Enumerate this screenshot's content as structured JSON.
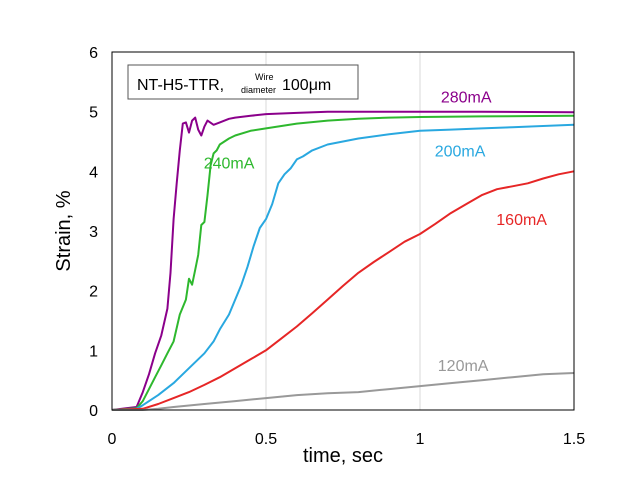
{
  "chart_data": {
    "type": "line",
    "title": "",
    "xlabel": "time, sec",
    "ylabel": "Strain, %",
    "xlim": [
      0,
      1.5
    ],
    "ylim": [
      0,
      6
    ],
    "xticks": [
      "0",
      "0.5",
      "1",
      "1.5"
    ],
    "yticks": [
      "0",
      "1",
      "2",
      "3",
      "4",
      "5",
      "6"
    ],
    "grid": "vertical",
    "annotation": {
      "prefix": "NT-H5-TTR, ",
      "sup": "Wire",
      "sub": "diameter",
      "value": "100",
      "unit": "μm"
    },
    "series": [
      {
        "name": "280mA",
        "color": "#8b008b",
        "x": [
          0,
          0.08,
          0.1,
          0.12,
          0.14,
          0.16,
          0.18,
          0.19,
          0.2,
          0.21,
          0.22,
          0.23,
          0.24,
          0.25,
          0.26,
          0.27,
          0.28,
          0.29,
          0.3,
          0.31,
          0.33,
          0.35,
          0.38,
          0.4,
          0.45,
          0.5,
          0.6,
          0.7,
          0.8,
          1.0,
          1.2,
          1.5
        ],
        "y": [
          0,
          0.05,
          0.3,
          0.6,
          0.95,
          1.25,
          1.7,
          2.3,
          3.2,
          3.8,
          4.35,
          4.8,
          4.82,
          4.65,
          4.85,
          4.9,
          4.7,
          4.6,
          4.75,
          4.85,
          4.78,
          4.82,
          4.88,
          4.9,
          4.93,
          4.96,
          4.98,
          5.0,
          5.0,
          5.0,
          5.0,
          4.99
        ]
      },
      {
        "name": "240mA",
        "color": "#2eb82e",
        "x": [
          0,
          0.08,
          0.1,
          0.12,
          0.14,
          0.16,
          0.18,
          0.2,
          0.22,
          0.24,
          0.25,
          0.26,
          0.27,
          0.28,
          0.29,
          0.3,
          0.31,
          0.32,
          0.33,
          0.34,
          0.35,
          0.38,
          0.4,
          0.45,
          0.5,
          0.6,
          0.7,
          0.8,
          0.9,
          1.0,
          1.2,
          1.5
        ],
        "y": [
          0,
          0.03,
          0.15,
          0.35,
          0.55,
          0.75,
          0.95,
          1.15,
          1.6,
          1.85,
          2.2,
          2.1,
          2.35,
          2.6,
          3.1,
          3.15,
          3.6,
          4.1,
          4.3,
          4.35,
          4.45,
          4.55,
          4.6,
          4.68,
          4.72,
          4.8,
          4.85,
          4.88,
          4.9,
          4.91,
          4.92,
          4.93
        ]
      },
      {
        "name": "200mA",
        "color": "#29a8e0",
        "x": [
          0,
          0.08,
          0.1,
          0.15,
          0.2,
          0.25,
          0.3,
          0.33,
          0.35,
          0.38,
          0.4,
          0.42,
          0.44,
          0.46,
          0.48,
          0.5,
          0.52,
          0.54,
          0.56,
          0.58,
          0.6,
          0.62,
          0.65,
          0.7,
          0.75,
          0.8,
          0.9,
          1.0,
          1.1,
          1.2,
          1.3,
          1.5
        ],
        "y": [
          0,
          0.02,
          0.08,
          0.25,
          0.45,
          0.7,
          0.95,
          1.15,
          1.35,
          1.6,
          1.85,
          2.1,
          2.4,
          2.75,
          3.05,
          3.2,
          3.45,
          3.8,
          3.95,
          4.05,
          4.2,
          4.25,
          4.35,
          4.45,
          4.5,
          4.55,
          4.62,
          4.68,
          4.7,
          4.72,
          4.74,
          4.78
        ]
      },
      {
        "name": "160mA",
        "color": "#e62626",
        "x": [
          0,
          0.1,
          0.15,
          0.2,
          0.25,
          0.3,
          0.35,
          0.4,
          0.45,
          0.5,
          0.55,
          0.6,
          0.65,
          0.7,
          0.75,
          0.8,
          0.85,
          0.9,
          0.95,
          1.0,
          1.05,
          1.1,
          1.15,
          1.2,
          1.25,
          1.3,
          1.35,
          1.4,
          1.45,
          1.5
        ],
        "y": [
          0,
          0.02,
          0.1,
          0.2,
          0.3,
          0.42,
          0.55,
          0.7,
          0.85,
          1.0,
          1.2,
          1.4,
          1.62,
          1.85,
          2.08,
          2.3,
          2.48,
          2.65,
          2.82,
          2.95,
          3.12,
          3.3,
          3.45,
          3.6,
          3.7,
          3.75,
          3.8,
          3.88,
          3.95,
          4.0
        ]
      },
      {
        "name": "120mA",
        "color": "#999999",
        "x": [
          0,
          0.1,
          0.15,
          0.2,
          0.3,
          0.4,
          0.5,
          0.6,
          0.7,
          0.8,
          0.9,
          1.0,
          1.1,
          1.2,
          1.3,
          1.4,
          1.5
        ],
        "y": [
          0,
          0,
          0.02,
          0.05,
          0.1,
          0.15,
          0.2,
          0.25,
          0.28,
          0.3,
          0.35,
          0.4,
          0.45,
          0.5,
          0.55,
          0.6,
          0.62
        ]
      }
    ]
  }
}
